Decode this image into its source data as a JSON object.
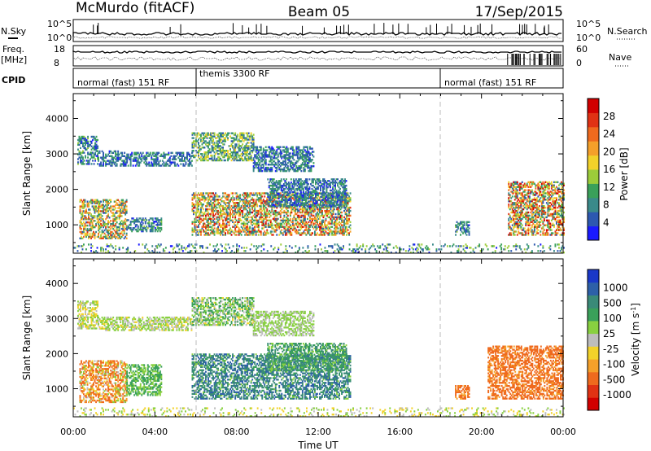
{
  "header": {
    "radar": "McMurdo (fitACF)",
    "beam": "Beam 05",
    "date": "17/Sep/2015"
  },
  "params": {
    "nsky_label": "N.Sky",
    "nsearch_label": "N.Search",
    "freq_label": "Freq.",
    "freq_unit": "[MHz]",
    "nave_label": "Nave",
    "cpid_label": "CPID",
    "nsky_ticks": [
      "10^5",
      "10^0"
    ],
    "nsearch_ticks": [
      "10^5",
      "10^0"
    ],
    "freq_ticks": [
      "18",
      "8"
    ],
    "nave_ticks": [
      "60",
      "0"
    ],
    "cpid_segments": [
      {
        "label": "normal (fast) 151 RF",
        "start_hour": 0,
        "end_hour": 6
      },
      {
        "label": "themis 3300 RF",
        "start_hour": 6,
        "end_hour": 18
      },
      {
        "label": "normal (fast) 151 RF",
        "start_hour": 18,
        "end_hour": 24
      }
    ]
  },
  "chart_data": [
    {
      "type": "heatmap",
      "name": "power",
      "ylabel": "Slant Range [km]",
      "xlabel": "Time UT",
      "xlim": [
        0,
        24
      ],
      "ylim": [
        200,
        4700
      ],
      "yticks": [
        "1000",
        "2000",
        "3000",
        "4000"
      ],
      "xticks": [
        "00:00",
        "04:00",
        "08:00",
        "12:00",
        "16:00",
        "20:00",
        "00:00"
      ],
      "colorbar": {
        "label": "Power [dB]",
        "ticks": [
          "4",
          "8",
          "12",
          "16",
          "20",
          "24",
          "28"
        ],
        "colors": [
          "#1a1aff",
          "#2d58b0",
          "#3a8a8a",
          "#3aa05a",
          "#9ccc3a",
          "#f2d22a",
          "#f5a02a",
          "#ef6a1e",
          "#e03214",
          "#d10000"
        ]
      },
      "regions": [
        {
          "t0": 0.2,
          "t1": 1.2,
          "r0": 2700,
          "r1": 3500,
          "vmin": 4,
          "vmax": 14
        },
        {
          "t0": 1.2,
          "t1": 2.3,
          "r0": 2650,
          "r1": 3100,
          "vmin": 4,
          "vmax": 12
        },
        {
          "t0": 2.3,
          "t1": 5.8,
          "r0": 2650,
          "r1": 3050,
          "vmin": 4,
          "vmax": 12
        },
        {
          "t0": 5.8,
          "t1": 8.8,
          "r0": 2800,
          "r1": 3600,
          "vmin": 6,
          "vmax": 18
        },
        {
          "t0": 8.8,
          "t1": 11.8,
          "r0": 2500,
          "r1": 3200,
          "vmin": 4,
          "vmax": 12
        },
        {
          "t0": 0.3,
          "t1": 2.6,
          "r0": 600,
          "r1": 1700,
          "vmin": 6,
          "vmax": 26
        },
        {
          "t0": 2.6,
          "t1": 4.3,
          "r0": 800,
          "r1": 1200,
          "vmin": 4,
          "vmax": 14
        },
        {
          "t0": 5.8,
          "t1": 13.6,
          "r0": 700,
          "r1": 1900,
          "vmin": 6,
          "vmax": 28
        },
        {
          "t0": 9.5,
          "t1": 13.4,
          "r0": 1500,
          "r1": 2300,
          "vmin": 4,
          "vmax": 12
        },
        {
          "t0": 21.3,
          "t1": 24.0,
          "r0": 700,
          "r1": 2200,
          "vmin": 6,
          "vmax": 30
        },
        {
          "t0": 18.7,
          "t1": 19.4,
          "r0": 700,
          "r1": 1100,
          "vmin": 4,
          "vmax": 14
        },
        {
          "t0": 0.0,
          "t1": 24.0,
          "r0": 200,
          "r1": 450,
          "vmin": 4,
          "vmax": 16
        }
      ]
    },
    {
      "type": "heatmap",
      "name": "velocity",
      "ylabel": "Slant Range [km]",
      "xlabel": "Time UT",
      "xlim": [
        0,
        24
      ],
      "ylim": [
        200,
        4700
      ],
      "yticks": [
        "1000",
        "2000",
        "3000",
        "4000"
      ],
      "xticks": [
        "00:00",
        "04:00",
        "08:00",
        "12:00",
        "16:00",
        "20:00",
        "00:00"
      ],
      "colorbar": {
        "label": "Velocity [m s^-1]",
        "ticks": [
          "1000",
          "500",
          "100",
          "25",
          "-25",
          "-100",
          "-500",
          "-1000"
        ],
        "colors": [
          "#1a38c8",
          "#2d60a8",
          "#3a8a78",
          "#3aa05a",
          "#88d040",
          "#bdbdbd",
          "#f2d22a",
          "#f5a02a",
          "#ef6a1e",
          "#e03214",
          "#d10000"
        ]
      },
      "regions": [
        {
          "t0": 0.2,
          "t1": 1.2,
          "r0": 2700,
          "r1": 3500,
          "vmin": -100,
          "vmax": 100
        },
        {
          "t0": 1.2,
          "t1": 5.8,
          "r0": 2650,
          "r1": 3050,
          "vmin": -50,
          "vmax": 100
        },
        {
          "t0": 5.8,
          "t1": 8.8,
          "r0": 2800,
          "r1": 3600,
          "vmin": -50,
          "vmax": 200
        },
        {
          "t0": 8.8,
          "t1": 11.8,
          "r0": 2500,
          "r1": 3200,
          "vmin": -25,
          "vmax": 100
        },
        {
          "t0": 0.3,
          "t1": 2.6,
          "r0": 600,
          "r1": 1800,
          "vmin": -500,
          "vmax": 100
        },
        {
          "t0": 2.6,
          "t1": 4.3,
          "r0": 800,
          "r1": 1700,
          "vmin": 25,
          "vmax": 200
        },
        {
          "t0": 5.8,
          "t1": 13.6,
          "r0": 700,
          "r1": 2000,
          "vmin": 50,
          "vmax": 700
        },
        {
          "t0": 9.5,
          "t1": 13.4,
          "r0": 1500,
          "r1": 2300,
          "vmin": 50,
          "vmax": 300
        },
        {
          "t0": 20.3,
          "t1": 24.0,
          "r0": 700,
          "r1": 2200,
          "vmin": -500,
          "vmax": -100
        },
        {
          "t0": 18.7,
          "t1": 19.4,
          "r0": 700,
          "r1": 1100,
          "vmin": -500,
          "vmax": -100
        },
        {
          "t0": 0.0,
          "t1": 24.0,
          "r0": 200,
          "r1": 450,
          "vmin": -100,
          "vmax": 100
        }
      ]
    }
  ]
}
